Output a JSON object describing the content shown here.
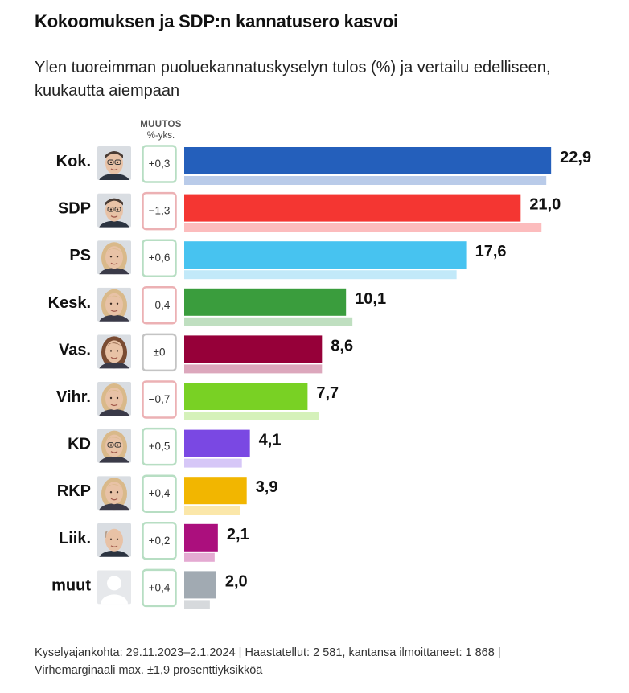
{
  "title": "Kokoomuksen ja SDP:n kannatusero kasvoi",
  "subtitle": "Ylen tuoreimman puoluekannatuskyselyn tulos (%) ja vertailu edelliseen, kuukautta aiempaan",
  "change_header": {
    "line1": "MUUTOS",
    "line2": "%-yks."
  },
  "footer": {
    "line1": "Kyselyajankohta: 29.11.2023–2.1.2024 | Haastatellut: 2 581, kantansa ilmoittaneet: 1 868 |",
    "line2": "Virhemarginaali max. ±1,9 prosenttiyksikköä"
  },
  "colors": {
    "positive_box": "#b7dec3",
    "negative_box": "#ecb1b4",
    "neutral_box": "#c4c4c4"
  },
  "chart_data": {
    "type": "bar",
    "orientation": "horizontal",
    "categories": [
      "Kok.",
      "SDP",
      "PS",
      "Kesk.",
      "Vas.",
      "Vihr.",
      "KD",
      "RKP",
      "Liik.",
      "muut"
    ],
    "series": [
      {
        "values": [
          22.9,
          21.0,
          17.6,
          10.1,
          8.6,
          7.7,
          4.1,
          3.9,
          2.1,
          2.0
        ]
      },
      {
        "values": [
          22.6,
          22.3,
          17.0,
          10.5,
          8.6,
          8.4,
          3.6,
          3.5,
          1.9,
          1.6
        ]
      }
    ],
    "value_labels": [
      "22,9",
      "21,0",
      "17,6",
      "10,1",
      "8,6",
      "7,7",
      "4,1",
      "3,9",
      "2,1",
      "2,0"
    ],
    "changes": [
      0.3,
      -1.3,
      0.6,
      -0.4,
      0,
      -0.7,
      0.5,
      0.4,
      0.2,
      0.4
    ],
    "change_labels": [
      "+0,3",
      "−1,3",
      "+0,6",
      "−0,4",
      "±0",
      "−0,7",
      "+0,5",
      "+0,4",
      "+0,2",
      "+0,4"
    ],
    "colors": [
      "#245fbb",
      "#f43632",
      "#47c3f0",
      "#3a9d3d",
      "#960039",
      "#79d124",
      "#7a48e3",
      "#f2b600",
      "#ab0f7d",
      "#a1aab2"
    ],
    "prev_colors": [
      "#b9cbe9",
      "#fcbcbd",
      "#c2e9f9",
      "#bfdfc0",
      "#dca7bc",
      "#d5f1ba",
      "#d6c7f7",
      "#fbe7a9",
      "#e4aad2",
      "#d6d9dc"
    ],
    "portraits": [
      "man-glasses",
      "man-glasses",
      "woman-blonde",
      "woman-blonde",
      "woman-brown",
      "woman-blonde",
      "woman-glasses",
      "woman-blonde",
      "man-bald",
      "placeholder"
    ],
    "xlim": [
      0,
      25
    ],
    "grid": false,
    "legend": "none"
  }
}
